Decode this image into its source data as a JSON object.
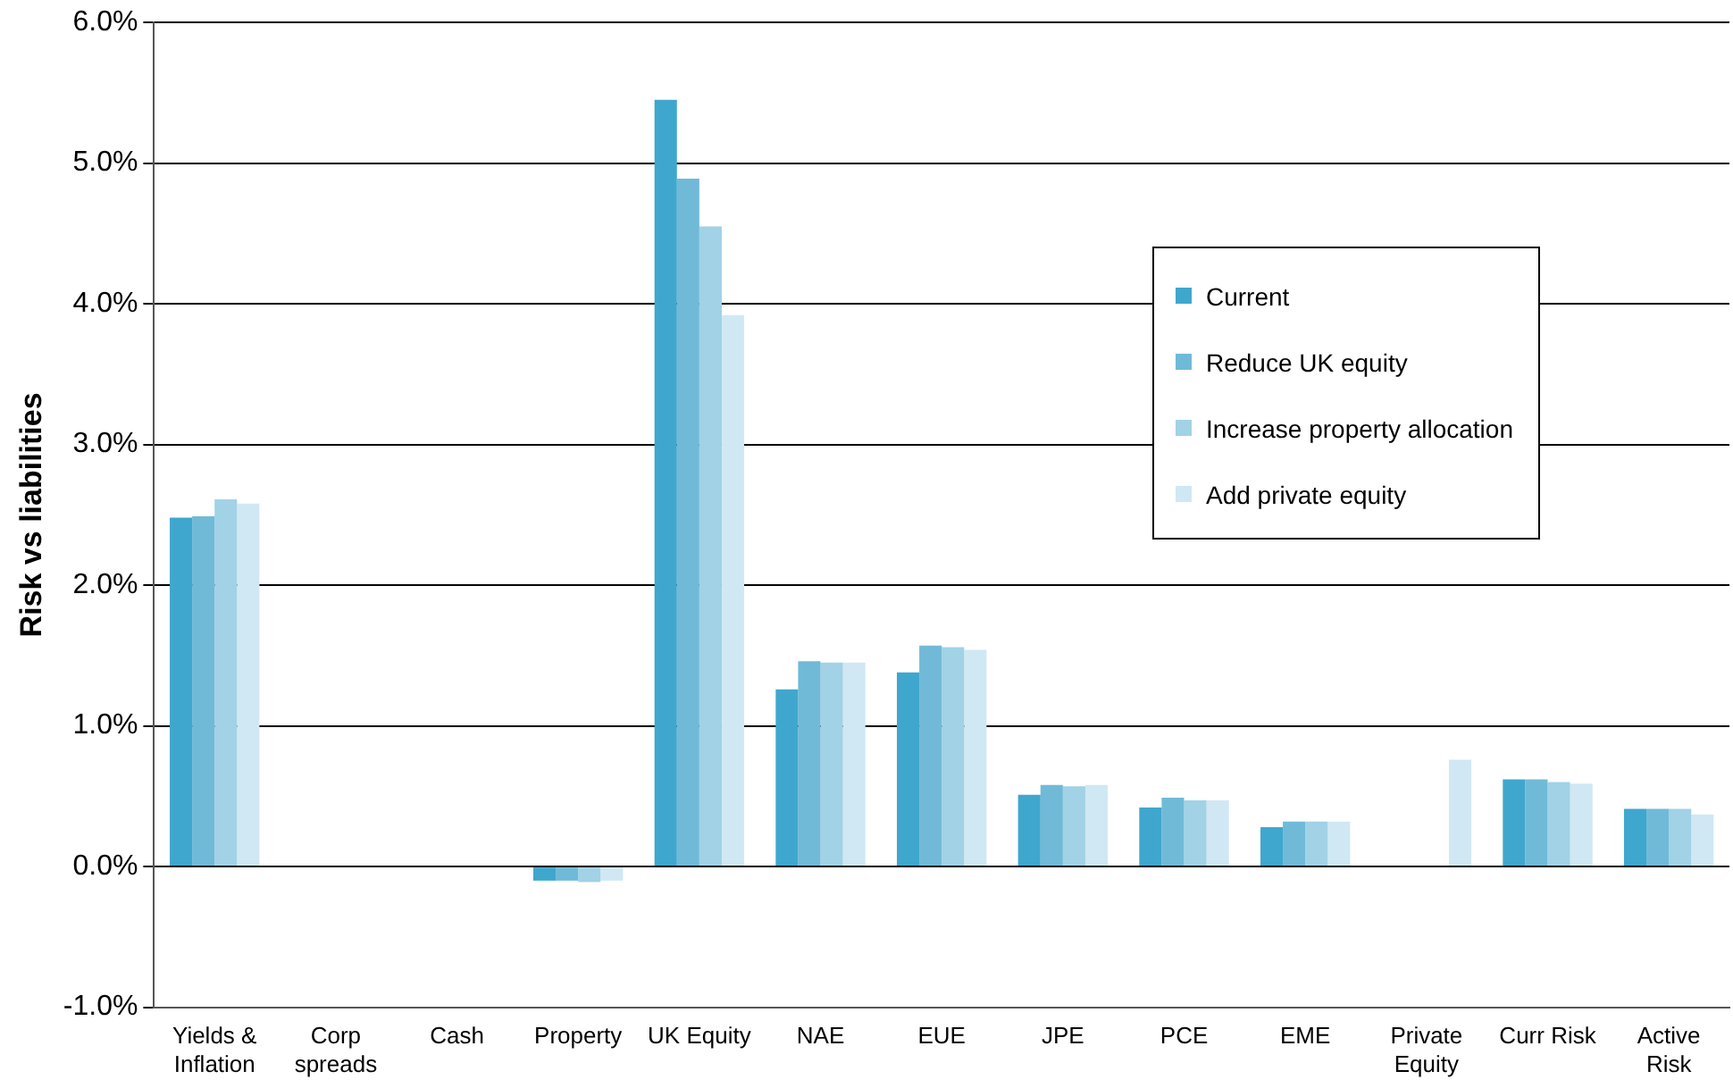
{
  "chart_data": {
    "type": "bar",
    "ylabel": "Risk vs liabilities",
    "categories": [
      "Yields & Inflation",
      "Corp spreads",
      "Cash",
      "Property",
      "UK Equity",
      "NAE",
      "EUE",
      "JPE",
      "PCE",
      "EME",
      "Private Equity",
      "Curr Risk",
      "Active Risk"
    ],
    "series": [
      {
        "name": "Current",
        "color": "#3fa7cd",
        "values": [
          2.48,
          0,
          0,
          -0.1,
          5.45,
          1.26,
          1.38,
          0.51,
          0.42,
          0.28,
          0,
          0.62,
          0.41
        ]
      },
      {
        "name": "Reduce UK equity",
        "color": "#70bad8",
        "values": [
          2.49,
          0,
          0,
          -0.1,
          4.89,
          1.46,
          1.57,
          0.58,
          0.49,
          0.32,
          0,
          0.62,
          0.41
        ]
      },
      {
        "name": "Increase property allocation",
        "color": "#a1d2e6",
        "values": [
          2.61,
          0,
          0,
          -0.11,
          4.55,
          1.45,
          1.56,
          0.57,
          0.47,
          0.32,
          0,
          0.6,
          0.41
        ]
      },
      {
        "name": "Add private equity",
        "color": "#d0e8f4",
        "values": [
          2.58,
          0,
          0,
          -0.1,
          3.92,
          1.45,
          1.54,
          0.58,
          0.47,
          0.32,
          0.76,
          0.59,
          0.37
        ]
      }
    ],
    "ylim": [
      -1,
      6
    ],
    "yticks": [
      {
        "value": -1,
        "label": "-1.0%"
      },
      {
        "value": 0,
        "label": "0.0%"
      },
      {
        "value": 1,
        "label": "1.0%"
      },
      {
        "value": 2,
        "label": "2.0%"
      },
      {
        "value": 3,
        "label": "3.0%"
      },
      {
        "value": 4,
        "label": "4.0%"
      },
      {
        "value": 5,
        "label": "5.0%"
      },
      {
        "value": 6,
        "label": "6.0%"
      }
    ],
    "grid": "y",
    "legend": "top right"
  }
}
